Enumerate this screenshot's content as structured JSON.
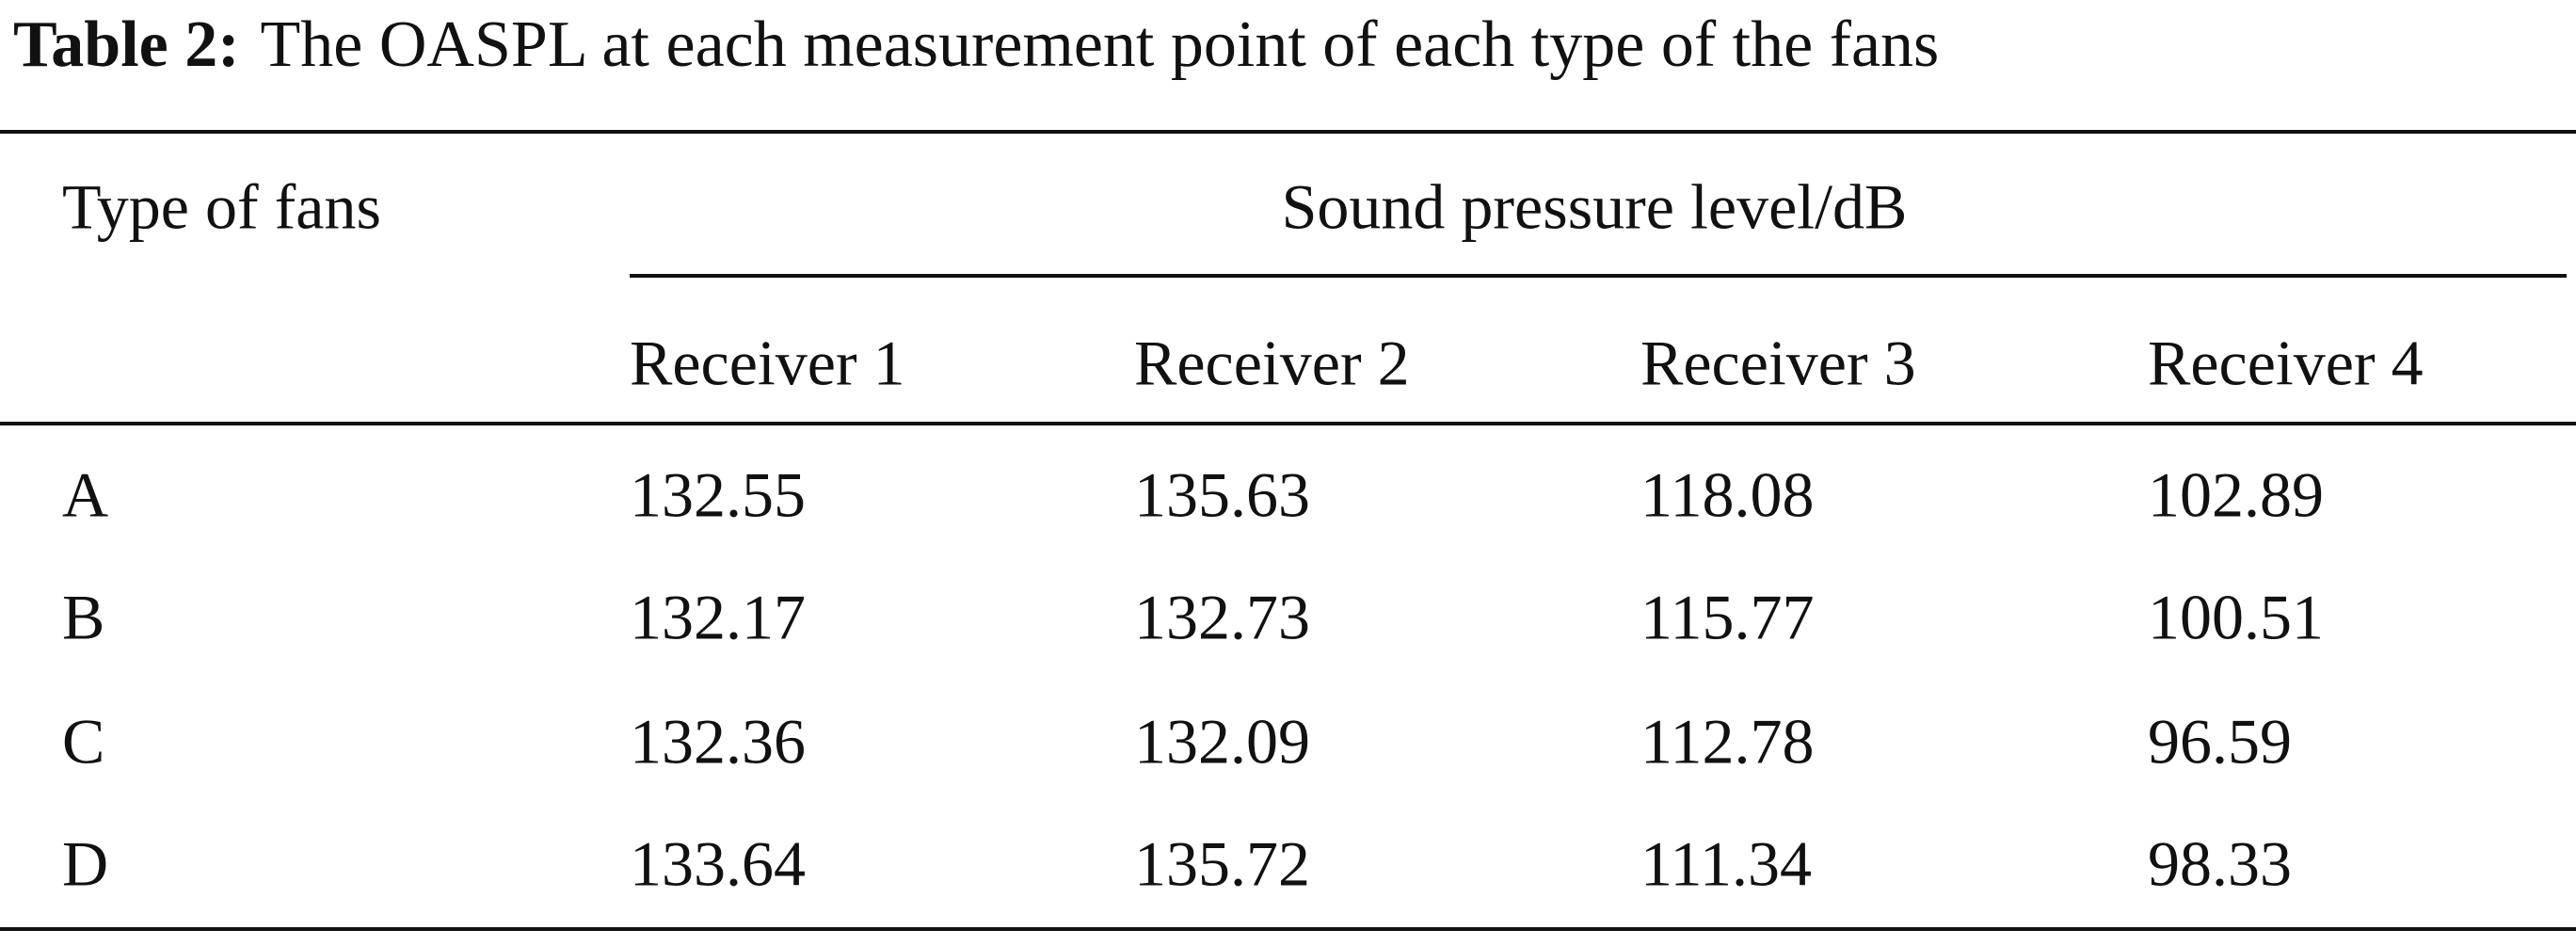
{
  "caption": {
    "label": "Table 2:",
    "text": "The OASPL at each measurement point of each type of the fans"
  },
  "table": {
    "header": {
      "type": "Type of fans",
      "group": "Sound pressure level/dB"
    },
    "subheaders": [
      "Receiver 1",
      "Receiver 2",
      "Receiver 3",
      "Receiver 4"
    ],
    "rows": [
      [
        "A",
        132.55,
        135.63,
        118.08,
        102.89
      ],
      [
        "B",
        132.17,
        132.73,
        115.77,
        100.51
      ],
      [
        "C",
        132.36,
        132.09,
        112.78,
        96.59
      ],
      [
        "D",
        133.64,
        135.72,
        111.34,
        98.33
      ]
    ]
  }
}
